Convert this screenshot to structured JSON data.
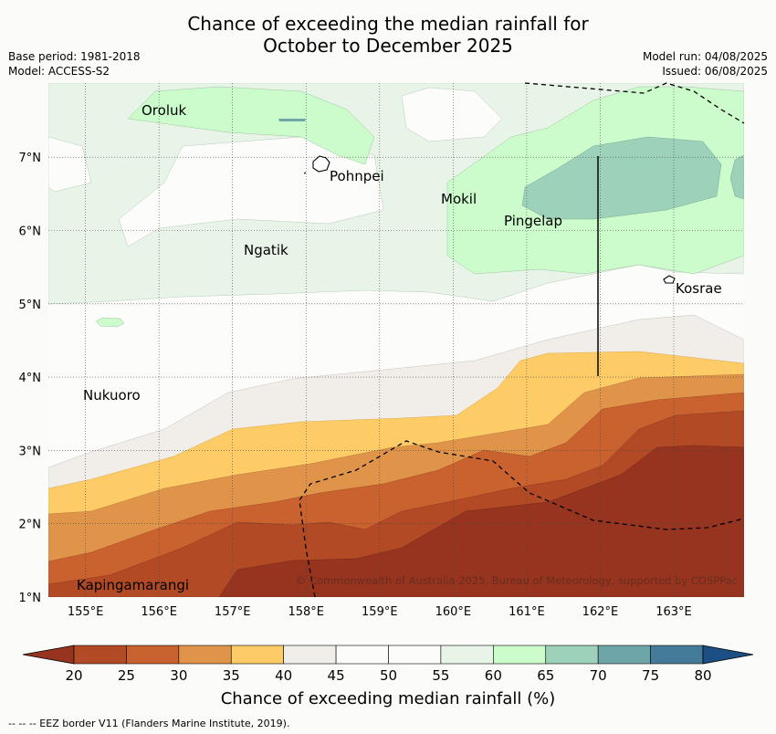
{
  "header": {
    "title_line1": "Chance of exceeding the median rainfall for",
    "title_line2": "October to December 2025",
    "base_period": "Base period: 1981-2018",
    "model": "Model: ACCESS-S2",
    "model_run": "Model run: 04/08/2025",
    "issued": "Issued: 06/08/2025"
  },
  "map": {
    "lon_ticks": [
      "155°E",
      "156°E",
      "157°E",
      "158°E",
      "159°E",
      "160°E",
      "161°E",
      "162°E",
      "163°E"
    ],
    "lat_ticks": [
      "1°N",
      "2°N",
      "3°N",
      "4°N",
      "5°N",
      "6°N",
      "7°N"
    ],
    "places": [
      "Oroluk",
      "Pohnpei",
      "Mokil",
      "Pingelap",
      "Ngatik",
      "Kosrae",
      "Nukuoro",
      "Kapingamarangi"
    ],
    "copyright": "© Commonwealth of Australia 2025, Bureau of Meteorology, supported by COSPPac"
  },
  "colorbar": {
    "ticks": [
      "20",
      "25",
      "30",
      "35",
      "40",
      "45",
      "50",
      "55",
      "60",
      "65",
      "70",
      "75",
      "80"
    ],
    "colors": [
      "#b24a26",
      "#c9622f",
      "#e0944a",
      "#fdcc67",
      "#f1ede8",
      "#fcfdfb",
      "#fcfdfb",
      "#e9f4e9",
      "#ccfccc",
      "#9dd1b9",
      "#6ea5a8",
      "#447b98",
      "#1c4f84"
    ],
    "low_extend_color": "#963420",
    "high_extend_color": "#1c4f84",
    "label": "Chance of exceeding median rainfall (%)"
  },
  "footer": {
    "eez_legend": "--  --  -- EEZ border V11 (Flanders Marine Institute, 2019)."
  }
}
